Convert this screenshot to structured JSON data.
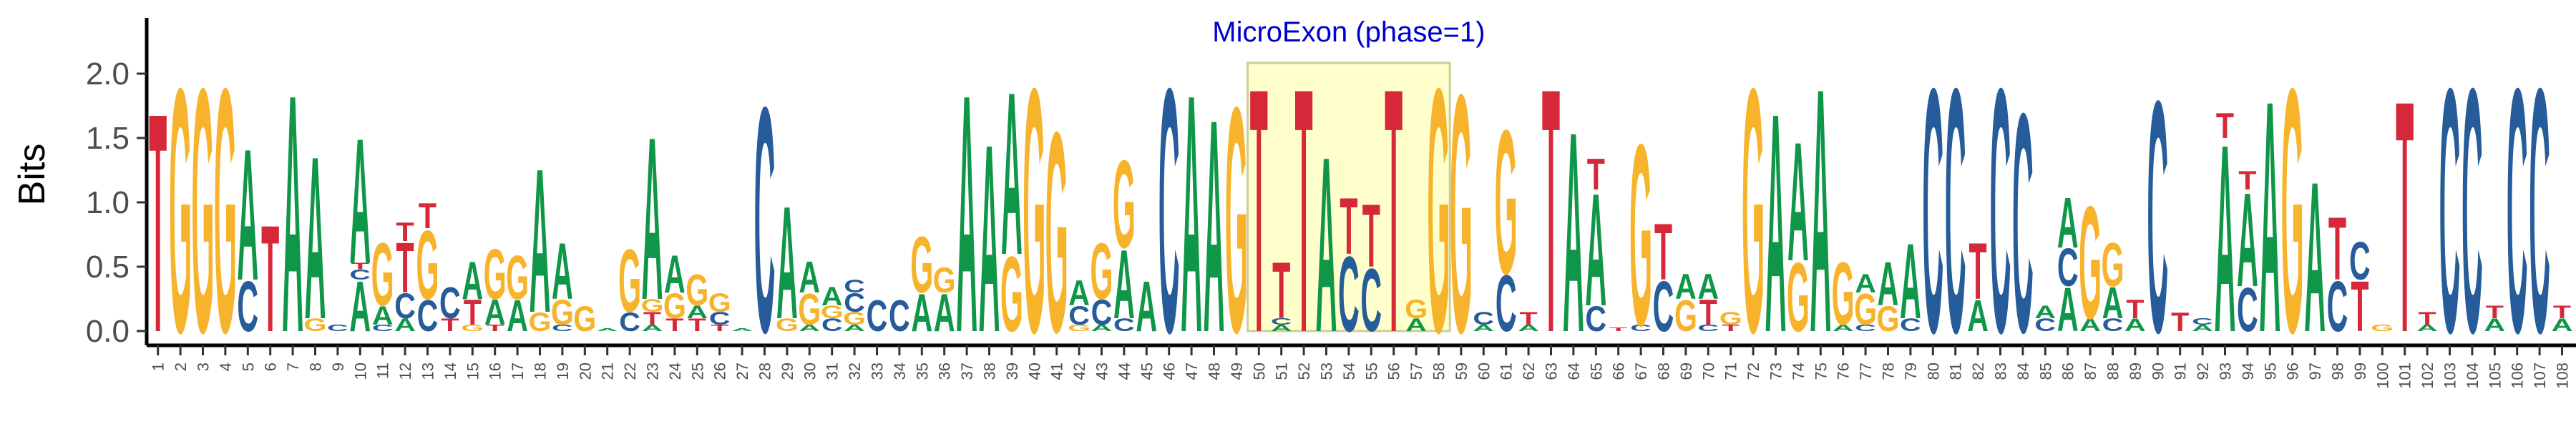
{
  "chart_data": {
    "type": "sequence-logo",
    "title": "",
    "ylabel": "Bits",
    "xlabel": "",
    "ylim": [
      0,
      2.3
    ],
    "yticks": [
      0.0,
      0.5,
      1.0,
      1.5,
      2.0
    ],
    "ytick_labels": [
      "0.0",
      "0.5",
      "1.0",
      "1.5",
      "2.0"
    ],
    "grid": false,
    "colors": {
      "A": "#109648",
      "C": "#255C99",
      "G": "#F7B32B",
      "T": "#D62839"
    },
    "annotation": {
      "text": "MicroExon (phase=1)",
      "start": 50,
      "end": 58,
      "color": "#0000CC",
      "fill": "#FFFFCC"
    },
    "positions": [
      {
        "pos": "1",
        "letters": [
          [
            "T",
            1.75
          ]
        ]
      },
      {
        "pos": "2",
        "letters": [
          [
            "G",
            1.95
          ]
        ]
      },
      {
        "pos": "3",
        "letters": [
          [
            "G",
            1.95
          ]
        ]
      },
      {
        "pos": "4",
        "letters": [
          [
            "G",
            1.95
          ]
        ]
      },
      {
        "pos": "5",
        "letters": [
          [
            "C",
            0.4
          ],
          [
            "A",
            1.05
          ]
        ]
      },
      {
        "pos": "6",
        "letters": [
          [
            "T",
            0.85
          ]
        ]
      },
      {
        "pos": "7",
        "letters": [
          [
            "A",
            1.9
          ]
        ]
      },
      {
        "pos": "8",
        "letters": [
          [
            "G",
            0.1
          ],
          [
            "A",
            1.3
          ]
        ]
      },
      {
        "pos": "9",
        "letters": [
          [
            "C",
            0.05
          ]
        ]
      },
      {
        "pos": "10",
        "letters": [
          [
            "A",
            0.4
          ],
          [
            "C",
            0.08
          ],
          [
            "T",
            0.05
          ],
          [
            "A",
            1.0
          ]
        ]
      },
      {
        "pos": "11",
        "letters": [
          [
            "C",
            0.05
          ],
          [
            "A",
            0.15
          ],
          [
            "G",
            0.5
          ]
        ]
      },
      {
        "pos": "12",
        "letters": [
          [
            "A",
            0.1
          ],
          [
            "C",
            0.2
          ],
          [
            "T",
            0.4
          ],
          [
            "T",
            0.15
          ]
        ]
      },
      {
        "pos": "13",
        "letters": [
          [
            "C",
            0.25
          ],
          [
            "G",
            0.55
          ],
          [
            "T",
            0.2
          ]
        ]
      },
      {
        "pos": "14",
        "letters": [
          [
            "T",
            0.1
          ],
          [
            "C",
            0.25
          ]
        ]
      },
      {
        "pos": "15",
        "letters": [
          [
            "G",
            0.05
          ],
          [
            "T",
            0.2
          ],
          [
            "A",
            0.3
          ]
        ]
      },
      {
        "pos": "16",
        "letters": [
          [
            "T",
            0.05
          ],
          [
            "A",
            0.2
          ],
          [
            "G",
            0.4
          ]
        ]
      },
      {
        "pos": "17",
        "letters": [
          [
            "A",
            0.25
          ],
          [
            "G",
            0.35
          ]
        ]
      },
      {
        "pos": "18",
        "letters": [
          [
            "G",
            0.15
          ],
          [
            "A",
            1.15
          ]
        ]
      },
      {
        "pos": "19",
        "letters": [
          [
            "C",
            0.05
          ],
          [
            "G",
            0.2
          ],
          [
            "A",
            0.45
          ]
        ]
      },
      {
        "pos": "20",
        "letters": [
          [
            "G",
            0.2
          ]
        ]
      },
      {
        "pos": "21",
        "letters": [
          [
            "A",
            0.02
          ]
        ]
      },
      {
        "pos": "22",
        "letters": [
          [
            "C",
            0.15
          ],
          [
            "G",
            0.5
          ]
        ]
      },
      {
        "pos": "23",
        "letters": [
          [
            "A",
            0.05
          ],
          [
            "T",
            0.1
          ],
          [
            "G",
            0.1
          ],
          [
            "A",
            1.3
          ]
        ]
      },
      {
        "pos": "24",
        "letters": [
          [
            "T",
            0.1
          ],
          [
            "G",
            0.2
          ],
          [
            "A",
            0.3
          ]
        ]
      },
      {
        "pos": "25",
        "letters": [
          [
            "T",
            0.1
          ],
          [
            "A",
            0.1
          ],
          [
            "G",
            0.25
          ]
        ]
      },
      {
        "pos": "26",
        "letters": [
          [
            "T",
            0.05
          ],
          [
            "C",
            0.1
          ],
          [
            "G",
            0.15
          ]
        ]
      },
      {
        "pos": "27",
        "letters": [
          [
            "A",
            0.02
          ]
        ]
      },
      {
        "pos": "28",
        "letters": [
          [
            "C",
            1.8
          ]
        ]
      },
      {
        "pos": "29",
        "letters": [
          [
            "G",
            0.1
          ],
          [
            "A",
            0.9
          ]
        ]
      },
      {
        "pos": "30",
        "letters": [
          [
            "A",
            0.05
          ],
          [
            "G",
            0.25
          ],
          [
            "A",
            0.25
          ]
        ]
      },
      {
        "pos": "31",
        "letters": [
          [
            "C",
            0.1
          ],
          [
            "G",
            0.1
          ],
          [
            "A",
            0.15
          ]
        ]
      },
      {
        "pos": "32",
        "letters": [
          [
            "A",
            0.05
          ],
          [
            "G",
            0.1
          ],
          [
            "C",
            0.15
          ],
          [
            "C",
            0.1
          ]
        ]
      },
      {
        "pos": "33",
        "letters": [
          [
            "C",
            0.25
          ]
        ]
      },
      {
        "pos": "34",
        "letters": [
          [
            "C",
            0.25
          ]
        ]
      },
      {
        "pos": "35",
        "letters": [
          [
            "A",
            0.3
          ],
          [
            "G",
            0.45
          ]
        ]
      },
      {
        "pos": "36",
        "letters": [
          [
            "A",
            0.3
          ],
          [
            "G",
            0.2
          ]
        ]
      },
      {
        "pos": "37",
        "letters": [
          [
            "A",
            1.9
          ]
        ]
      },
      {
        "pos": "38",
        "letters": [
          [
            "A",
            1.5
          ]
        ]
      },
      {
        "pos": "39",
        "letters": [
          [
            "G",
            0.6
          ],
          [
            "A",
            1.3
          ]
        ]
      },
      {
        "pos": "40",
        "letters": [
          [
            "G",
            1.95
          ]
        ]
      },
      {
        "pos": "41",
        "letters": [
          [
            "G",
            1.6
          ]
        ]
      },
      {
        "pos": "42",
        "letters": [
          [
            "G",
            0.05
          ],
          [
            "C",
            0.15
          ],
          [
            "A",
            0.2
          ]
        ]
      },
      {
        "pos": "43",
        "letters": [
          [
            "A",
            0.05
          ],
          [
            "C",
            0.2
          ],
          [
            "G",
            0.45
          ]
        ]
      },
      {
        "pos": "44",
        "letters": [
          [
            "C",
            0.1
          ],
          [
            "A",
            0.55
          ],
          [
            "G",
            0.7
          ]
        ]
      },
      {
        "pos": "45",
        "letters": [
          [
            "A",
            0.4
          ]
        ]
      },
      {
        "pos": "46",
        "letters": [
          [
            "C",
            1.95
          ]
        ]
      },
      {
        "pos": "47",
        "letters": [
          [
            "A",
            1.9
          ]
        ]
      },
      {
        "pos": "48",
        "letters": [
          [
            "A",
            1.7
          ]
        ]
      },
      {
        "pos": "49",
        "letters": [
          [
            "G",
            1.8
          ]
        ]
      },
      {
        "pos": "50",
        "letters": [
          [
            "T",
            1.95
          ]
        ]
      },
      {
        "pos": "51",
        "letters": [
          [
            "A",
            0.05
          ],
          [
            "C",
            0.05
          ],
          [
            "T",
            0.45
          ]
        ]
      },
      {
        "pos": "52",
        "letters": [
          [
            "T",
            1.95
          ]
        ]
      },
      {
        "pos": "53",
        "letters": [
          [
            "A",
            1.4
          ]
        ]
      },
      {
        "pos": "54",
        "letters": [
          [
            "C",
            0.6
          ],
          [
            "T",
            0.45
          ]
        ]
      },
      {
        "pos": "55",
        "letters": [
          [
            "C",
            0.5
          ],
          [
            "T",
            0.5
          ]
        ]
      },
      {
        "pos": "56",
        "letters": [
          [
            "T",
            1.95
          ]
        ]
      },
      {
        "pos": "57",
        "letters": [
          [
            "A",
            0.1
          ],
          [
            "G",
            0.15
          ]
        ]
      },
      {
        "pos": "58",
        "letters": [
          [
            "G",
            1.95
          ]
        ]
      },
      {
        "pos": "59",
        "letters": [
          [
            "G",
            1.9
          ]
        ]
      },
      {
        "pos": "60",
        "letters": [
          [
            "A",
            0.05
          ],
          [
            "C",
            0.1
          ]
        ]
      },
      {
        "pos": "61",
        "letters": [
          [
            "C",
            0.45
          ],
          [
            "G",
            1.15
          ]
        ]
      },
      {
        "pos": "62",
        "letters": [
          [
            "A",
            0.05
          ],
          [
            "T",
            0.1
          ]
        ]
      },
      {
        "pos": "63",
        "letters": [
          [
            "T",
            1.95
          ]
        ]
      },
      {
        "pos": "64",
        "letters": [
          [
            "A",
            1.6
          ]
        ]
      },
      {
        "pos": "65",
        "letters": [
          [
            "C",
            0.2
          ],
          [
            "A",
            0.9
          ],
          [
            "T",
            0.25
          ]
        ]
      },
      {
        "pos": "66",
        "letters": [
          [
            "T",
            0.03
          ]
        ]
      },
      {
        "pos": "67",
        "letters": [
          [
            "C",
            0.05
          ],
          [
            "G",
            1.45
          ]
        ]
      },
      {
        "pos": "68",
        "letters": [
          [
            "C",
            0.4
          ],
          [
            "T",
            0.45
          ]
        ]
      },
      {
        "pos": "69",
        "letters": [
          [
            "G",
            0.25
          ],
          [
            "A",
            0.2
          ]
        ]
      },
      {
        "pos": "70",
        "letters": [
          [
            "C",
            0.05
          ],
          [
            "T",
            0.2
          ],
          [
            "A",
            0.2
          ]
        ]
      },
      {
        "pos": "71",
        "letters": [
          [
            "T",
            0.05
          ],
          [
            "G",
            0.1
          ]
        ]
      },
      {
        "pos": "72",
        "letters": [
          [
            "G",
            1.95
          ]
        ]
      },
      {
        "pos": "73",
        "letters": [
          [
            "A",
            1.75
          ]
        ]
      },
      {
        "pos": "74",
        "letters": [
          [
            "G",
            0.55
          ],
          [
            "A",
            0.95
          ]
        ]
      },
      {
        "pos": "75",
        "letters": [
          [
            "A",
            1.95
          ]
        ]
      },
      {
        "pos": "76",
        "letters": [
          [
            "A",
            0.05
          ],
          [
            "G",
            0.5
          ]
        ]
      },
      {
        "pos": "77",
        "letters": [
          [
            "C",
            0.05
          ],
          [
            "G",
            0.25
          ],
          [
            "A",
            0.15
          ]
        ]
      },
      {
        "pos": "78",
        "letters": [
          [
            "G",
            0.2
          ],
          [
            "A",
            0.35
          ]
        ]
      },
      {
        "pos": "79",
        "letters": [
          [
            "C",
            0.1
          ],
          [
            "A",
            0.6
          ]
        ]
      },
      {
        "pos": "80",
        "letters": [
          [
            "C",
            1.95
          ]
        ]
      },
      {
        "pos": "81",
        "letters": [
          [
            "C",
            1.95
          ]
        ]
      },
      {
        "pos": "82",
        "letters": [
          [
            "A",
            0.25
          ],
          [
            "T",
            0.45
          ]
        ]
      },
      {
        "pos": "83",
        "letters": [
          [
            "C",
            1.95
          ]
        ]
      },
      {
        "pos": "84",
        "letters": [
          [
            "C",
            1.75
          ]
        ]
      },
      {
        "pos": "85",
        "letters": [
          [
            "C",
            0.1
          ],
          [
            "A",
            0.1
          ]
        ]
      },
      {
        "pos": "86",
        "letters": [
          [
            "A",
            0.35
          ],
          [
            "C",
            0.3
          ],
          [
            "A",
            0.4
          ]
        ]
      },
      {
        "pos": "87",
        "letters": [
          [
            "A",
            0.1
          ],
          [
            "G",
            0.9
          ]
        ]
      },
      {
        "pos": "88",
        "letters": [
          [
            "C",
            0.1
          ],
          [
            "A",
            0.25
          ],
          [
            "G",
            0.35
          ]
        ]
      },
      {
        "pos": "89",
        "letters": [
          [
            "A",
            0.1
          ],
          [
            "T",
            0.15
          ]
        ]
      },
      {
        "pos": "90",
        "letters": [
          [
            "C",
            1.85
          ]
        ]
      },
      {
        "pos": "91",
        "letters": [
          [
            "T",
            0.15
          ]
        ]
      },
      {
        "pos": "92",
        "letters": [
          [
            "A",
            0.05
          ],
          [
            "C",
            0.05
          ]
        ]
      },
      {
        "pos": "93",
        "letters": [
          [
            "A",
            1.5
          ],
          [
            "T",
            0.2
          ]
        ]
      },
      {
        "pos": "94",
        "letters": [
          [
            "C",
            0.35
          ],
          [
            "A",
            0.75
          ],
          [
            "T",
            0.15
          ]
        ]
      },
      {
        "pos": "95",
        "letters": [
          [
            "A",
            1.85
          ]
        ]
      },
      {
        "pos": "96",
        "letters": [
          [
            "G",
            1.95
          ]
        ]
      },
      {
        "pos": "97",
        "letters": [
          [
            "A",
            1.2
          ]
        ]
      },
      {
        "pos": "98",
        "letters": [
          [
            "C",
            0.4
          ],
          [
            "T",
            0.5
          ]
        ]
      },
      {
        "pos": "99",
        "letters": [
          [
            "T",
            0.4
          ],
          [
            "C",
            0.3
          ]
        ]
      },
      {
        "pos": "100",
        "letters": [
          [
            "G",
            0.05
          ]
        ]
      },
      {
        "pos": "101",
        "letters": [
          [
            "T",
            1.85
          ]
        ]
      },
      {
        "pos": "102",
        "letters": [
          [
            "A",
            0.05
          ],
          [
            "T",
            0.1
          ]
        ]
      },
      {
        "pos": "103",
        "letters": [
          [
            "C",
            1.95
          ]
        ]
      },
      {
        "pos": "104",
        "letters": [
          [
            "C",
            1.95
          ]
        ]
      },
      {
        "pos": "105",
        "letters": [
          [
            "A",
            0.1
          ],
          [
            "T",
            0.1
          ]
        ]
      },
      {
        "pos": "106",
        "letters": [
          [
            "C",
            1.95
          ]
        ]
      },
      {
        "pos": "107",
        "letters": [
          [
            "C",
            1.95
          ]
        ]
      },
      {
        "pos": "108",
        "letters": [
          [
            "A",
            0.1
          ],
          [
            "T",
            0.1
          ]
        ]
      }
    ]
  }
}
